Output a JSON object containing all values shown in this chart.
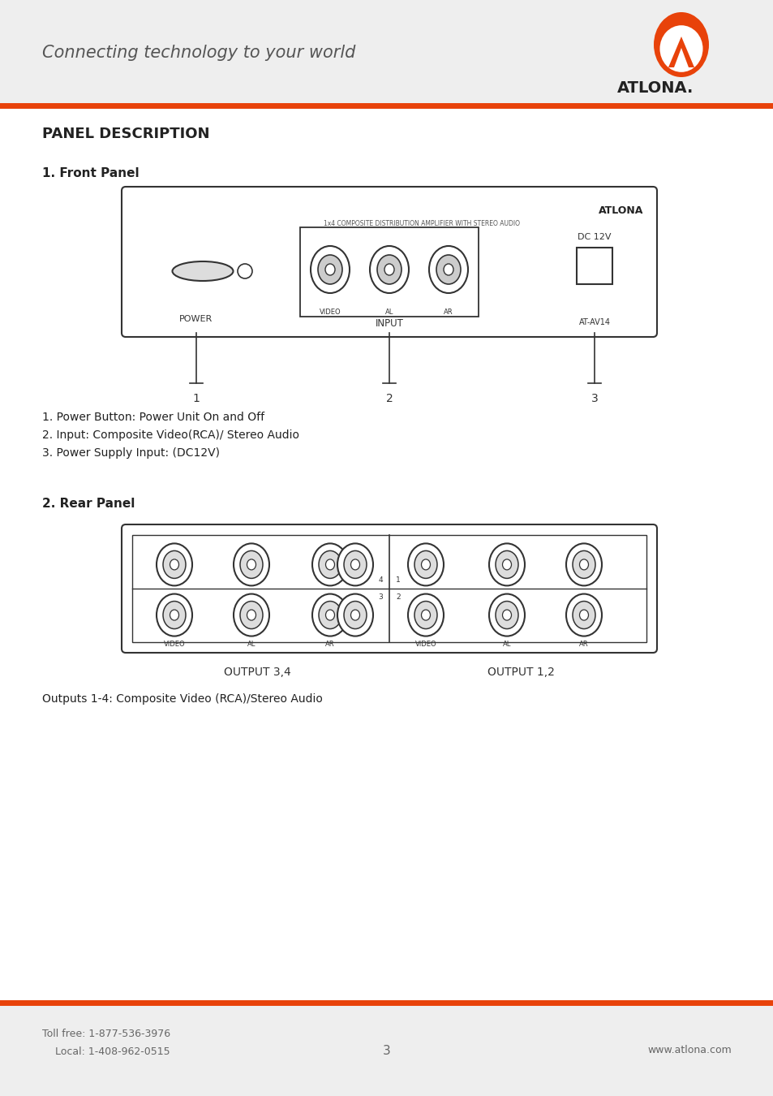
{
  "bg_color": "#ffffff",
  "header_bg": "#eeeeee",
  "footer_bg": "#eeeeee",
  "orange_color": "#e8420a",
  "dark_text": "#222222",
  "gray_text": "#666666",
  "mid_gray": "#888888",
  "header_text": "Connecting technology to your world",
  "atlona_brand": "ATLONA.",
  "panel_title": "PANEL DESCRIPTION",
  "front_panel_title": "1. Front Panel",
  "rear_panel_title": "2. Rear Panel",
  "front_device_title": "ATLONA",
  "front_device_subtitle": "1x4 COMPOSITE DISTRIBUTION AMPLIFIER WITH STEREO AUDIO",
  "front_dc_label": "DC 12V",
  "front_model": "AT-AV14",
  "front_power_label": "POWER",
  "front_input_label": "INPUT",
  "front_video_label": "VIDEO",
  "front_al_label": "AL",
  "front_ar_label": "AR",
  "front_notes": [
    "1. Power Button: Power Unit On and Off",
    "2. Input: Composite Video(RCA)/ Stereo Audio",
    "3. Power Supply Input: (DC12V)"
  ],
  "rear_output34_label": "OUTPUT 3,4",
  "rear_output12_label": "OUTPUT 1,2",
  "rear_note": "Outputs 1-4: Composite Video (RCA)/Stereo Audio",
  "footer_toll": "Toll free: 1-877-536-3976",
  "footer_local": "    Local: 1-408-962-0515",
  "footer_page": "3",
  "footer_web": "www.atlona.com"
}
